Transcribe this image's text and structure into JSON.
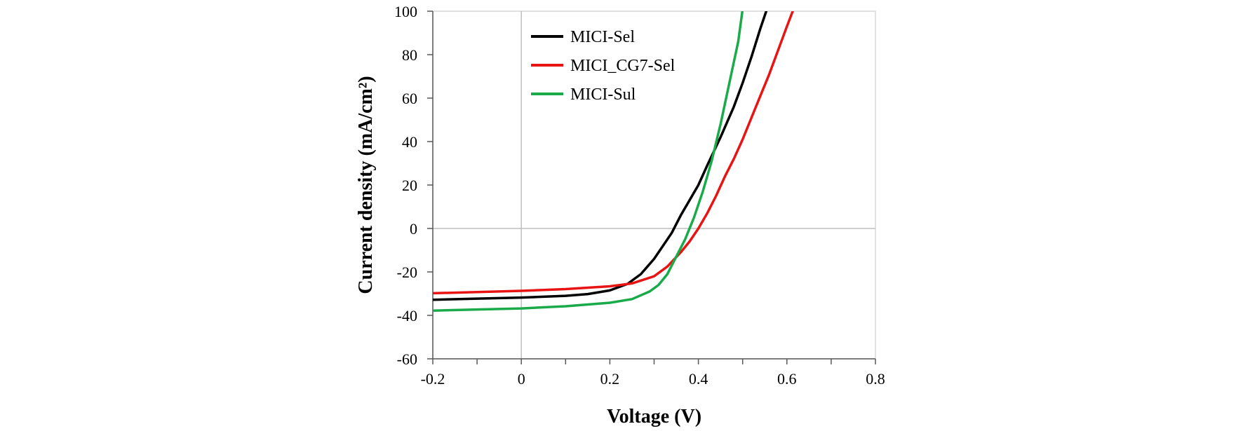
{
  "chart_data": {
    "type": "line",
    "xlabel": "Voltage (V)",
    "ylabel": "Current density (mA/cm²)",
    "xlim": [
      -0.2,
      0.8
    ],
    "ylim": [
      -60,
      100
    ],
    "x_ticks": [
      "-0.2",
      "0",
      "0.2",
      "0.4",
      "0.6",
      "0.8"
    ],
    "x_tick_values": [
      -0.2,
      0,
      0.2,
      0.4,
      0.6,
      0.8
    ],
    "y_ticks": [
      "-60",
      "-40",
      "-20",
      "0",
      "20",
      "40",
      "60",
      "80",
      "100"
    ],
    "y_tick_values": [
      -60,
      -40,
      -20,
      0,
      20,
      40,
      60,
      80,
      100
    ],
    "grid": false,
    "zero_lines": true,
    "legend_position": "top-left",
    "series": [
      {
        "name": "MICI-Sel",
        "color": "#000000",
        "points": [
          [
            -0.2,
            -32.8
          ],
          [
            -0.1,
            -32.3
          ],
          [
            0,
            -31.8
          ],
          [
            0.1,
            -31
          ],
          [
            0.15,
            -30.2
          ],
          [
            0.2,
            -28.5
          ],
          [
            0.24,
            -25.5
          ],
          [
            0.27,
            -21
          ],
          [
            0.3,
            -14
          ],
          [
            0.32,
            -8
          ],
          [
            0.34,
            -2
          ],
          [
            0.36,
            6
          ],
          [
            0.38,
            13
          ],
          [
            0.4,
            20
          ],
          [
            0.42,
            29
          ],
          [
            0.45,
            42
          ],
          [
            0.48,
            56
          ],
          [
            0.5,
            67
          ],
          [
            0.52,
            79
          ],
          [
            0.54,
            92
          ],
          [
            0.555,
            101
          ]
        ]
      },
      {
        "name": "MICI_CG7-Sel",
        "color": "#e81414",
        "points": [
          [
            -0.2,
            -29.8
          ],
          [
            -0.1,
            -29.3
          ],
          [
            0,
            -28.7
          ],
          [
            0.1,
            -27.9
          ],
          [
            0.2,
            -26.6
          ],
          [
            0.25,
            -25.3
          ],
          [
            0.3,
            -22
          ],
          [
            0.33,
            -17.5
          ],
          [
            0.36,
            -11
          ],
          [
            0.38,
            -6
          ],
          [
            0.4,
            0
          ],
          [
            0.42,
            7
          ],
          [
            0.44,
            15
          ],
          [
            0.46,
            24
          ],
          [
            0.48,
            32
          ],
          [
            0.5,
            41
          ],
          [
            0.52,
            51
          ],
          [
            0.54,
            61
          ],
          [
            0.56,
            71
          ],
          [
            0.58,
            82
          ],
          [
            0.6,
            93
          ],
          [
            0.615,
            101
          ]
        ]
      },
      {
        "name": "MICI-Sul",
        "color": "#1aaa4a",
        "points": [
          [
            -0.2,
            -37.8
          ],
          [
            -0.1,
            -37.3
          ],
          [
            0,
            -36.8
          ],
          [
            0.1,
            -35.8
          ],
          [
            0.2,
            -34.2
          ],
          [
            0.25,
            -32.5
          ],
          [
            0.29,
            -29
          ],
          [
            0.31,
            -26
          ],
          [
            0.33,
            -21
          ],
          [
            0.35,
            -13
          ],
          [
            0.37,
            -5
          ],
          [
            0.39,
            5
          ],
          [
            0.41,
            17
          ],
          [
            0.43,
            31
          ],
          [
            0.45,
            48
          ],
          [
            0.47,
            67
          ],
          [
            0.49,
            86
          ],
          [
            0.5,
            101
          ]
        ]
      }
    ]
  }
}
